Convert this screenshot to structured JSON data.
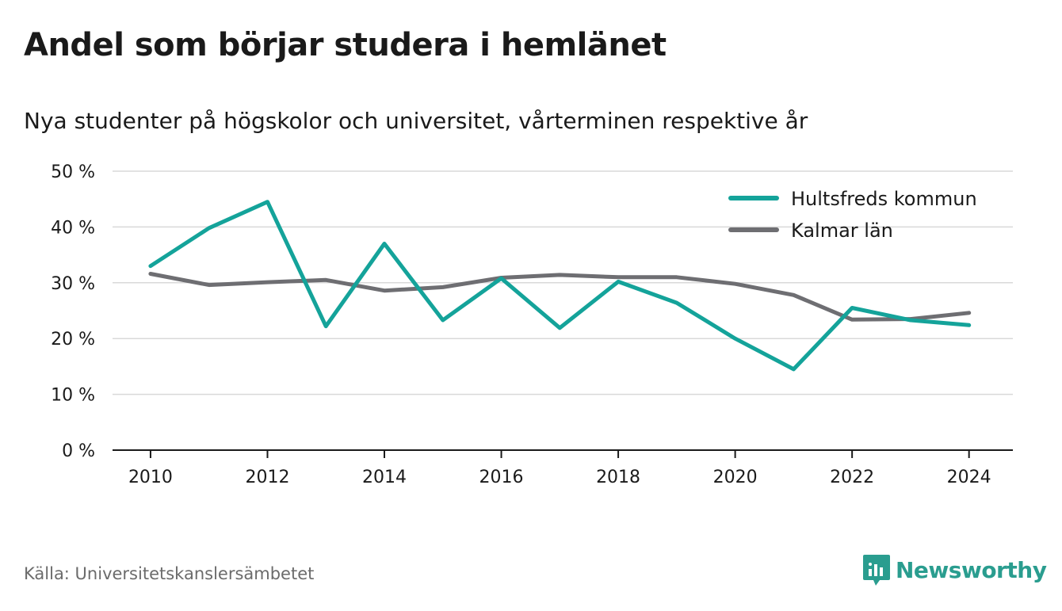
{
  "title": "Andel som börjar studera i hemlänet",
  "subtitle": "Nya studenter på högskolor och universitet, vårterminen respektive år",
  "source": "Källa: Universitetskanslersämbetet",
  "brand": {
    "name": "Newsworthy",
    "icon": "newsworthy-logo-icon",
    "color": "#2a9d8f"
  },
  "chart_data": {
    "type": "line",
    "x": [
      2010,
      2011,
      2012,
      2013,
      2014,
      2015,
      2016,
      2017,
      2018,
      2019,
      2020,
      2021,
      2022,
      2023,
      2024
    ],
    "series": [
      {
        "name": "Hultsfreds kommun",
        "color": "#14a39a",
        "values": [
          33.0,
          39.8,
          44.5,
          22.2,
          37.0,
          23.3,
          30.8,
          21.9,
          30.2,
          26.4,
          20.0,
          14.5,
          25.5,
          23.3,
          22.4
        ]
      },
      {
        "name": "Kalmar län",
        "color": "#6e6e72",
        "values": [
          31.6,
          29.6,
          30.1,
          30.5,
          28.6,
          29.2,
          30.9,
          31.4,
          31.0,
          31.0,
          29.8,
          27.8,
          23.4,
          23.5,
          24.6
        ]
      }
    ],
    "ylim": [
      0,
      50
    ],
    "yticks": [
      0,
      10,
      20,
      30,
      40,
      50
    ],
    "ytick_labels": [
      "0 %",
      "10 %",
      "20 %",
      "30 %",
      "40 %",
      "50 %"
    ],
    "xticks": [
      2010,
      2012,
      2014,
      2016,
      2018,
      2020,
      2022,
      2024
    ],
    "xtick_labels": [
      "2010",
      "2012",
      "2014",
      "2016",
      "2018",
      "2020",
      "2022",
      "2024"
    ],
    "grid": true,
    "legend": "top-right"
  }
}
